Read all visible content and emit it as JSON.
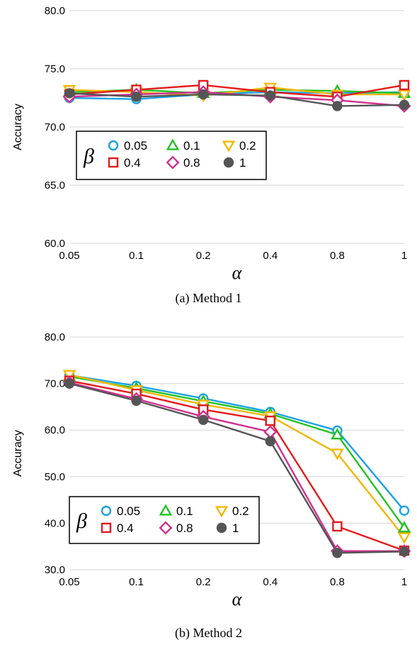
{
  "chart_data": [
    {
      "type": "line",
      "caption": "(a) Method 1",
      "xlabel": "α",
      "ylabel": "Accuracy",
      "categories": [
        "0.05",
        "0.1",
        "0.2",
        "0.4",
        "0.8",
        "1"
      ],
      "ylim": [
        60,
        80
      ],
      "yticks": [
        "60.0",
        "65.0",
        "70.0",
        "75.0",
        "80.0"
      ],
      "grid": true,
      "legend_title": "β",
      "legend_position": "left",
      "series": [
        {
          "name": "0.05",
          "color": "#1ba1e2",
          "marker": "circle",
          "values": [
            72.5,
            72.4,
            72.8,
            73.0,
            72.9,
            73.0
          ]
        },
        {
          "name": "0.1",
          "color": "#22c222",
          "marker": "triangle-up",
          "values": [
            73.0,
            73.2,
            72.9,
            73.2,
            73.1,
            72.9
          ]
        },
        {
          "name": "0.2",
          "color": "#f2b705",
          "marker": "triangle-down",
          "values": [
            73.2,
            73.0,
            72.7,
            73.4,
            72.8,
            72.8
          ]
        },
        {
          "name": "0.4",
          "color": "#e41a1c",
          "marker": "square",
          "values": [
            72.8,
            73.2,
            73.6,
            73.0,
            72.6,
            73.6
          ]
        },
        {
          "name": "0.8",
          "color": "#d0308f",
          "marker": "diamond",
          "values": [
            72.6,
            72.8,
            73.0,
            72.6,
            72.3,
            71.8
          ]
        },
        {
          "name": "1",
          "color": "#555555",
          "marker": "filled-circle",
          "values": [
            72.9,
            72.6,
            72.8,
            72.7,
            71.8,
            71.9
          ]
        }
      ]
    },
    {
      "type": "line",
      "caption": "(b) Method 2",
      "xlabel": "α",
      "ylabel": "Accuracy",
      "categories": [
        "0.05",
        "0.1",
        "0.2",
        "0.4",
        "0.8",
        "1"
      ],
      "ylim": [
        30,
        80
      ],
      "yticks": [
        "30.0",
        "40.0",
        "50.0",
        "60.0",
        "70.0",
        "80.0"
      ],
      "grid": true,
      "legend_title": "β",
      "legend_position": "left",
      "series": [
        {
          "name": "0.05",
          "color": "#1ba1e2",
          "marker": "circle",
          "values": [
            71.8,
            69.5,
            66.8,
            63.9,
            59.9,
            42.7
          ]
        },
        {
          "name": "0.1",
          "color": "#22c222",
          "marker": "triangle-up",
          "values": [
            71.5,
            69.0,
            66.2,
            63.5,
            59.0,
            39.0
          ]
        },
        {
          "name": "0.2",
          "color": "#f2b705",
          "marker": "triangle-down",
          "values": [
            71.9,
            68.6,
            65.5,
            63.0,
            55.0,
            37.0
          ]
        },
        {
          "name": "0.4",
          "color": "#e41a1c",
          "marker": "square",
          "values": [
            70.6,
            67.8,
            64.4,
            62.0,
            39.3,
            34.1
          ]
        },
        {
          "name": "0.8",
          "color": "#d0308f",
          "marker": "diamond",
          "values": [
            70.2,
            66.7,
            62.9,
            59.6,
            34.0,
            34.0
          ]
        },
        {
          "name": "1",
          "color": "#555555",
          "marker": "filled-circle",
          "values": [
            70.0,
            66.3,
            62.2,
            57.6,
            33.6,
            33.9
          ]
        }
      ]
    }
  ]
}
